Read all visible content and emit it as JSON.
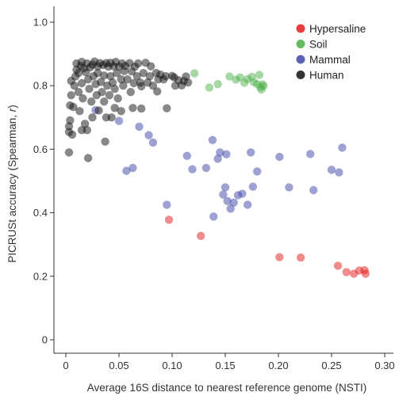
{
  "chart_data": {
    "type": "scatter",
    "title": "",
    "xlabel": "Average 16S distance to nearest reference genome (NSTI)",
    "ylabel_prefix": "PICRUSt accuracy (Spearman, ",
    "ylabel_var": "r",
    "ylabel_suffix": ")",
    "xlim": [
      0,
      0.3
    ],
    "ylim": [
      0,
      1.0
    ],
    "xticks": [
      0,
      0.05,
      0.1,
      0.15,
      0.2,
      0.25,
      0.3
    ],
    "xtick_labels": [
      "0",
      "0.05",
      "0.10",
      "0.15",
      "0.20",
      "0.25",
      "0.30"
    ],
    "yticks": [
      0,
      0.2,
      0.4,
      0.6,
      0.8,
      1.0
    ],
    "ytick_labels": [
      "0",
      "0.2",
      "0.4",
      "0.6",
      "0.8",
      "1.0"
    ],
    "grid": false,
    "legend_position": "top-right",
    "series": [
      {
        "name": "Hypersaline",
        "color": "#e41a1c",
        "points": [
          [
            0.097,
            0.378
          ],
          [
            0.127,
            0.327
          ],
          [
            0.201,
            0.26
          ],
          [
            0.221,
            0.259
          ],
          [
            0.256,
            0.233
          ],
          [
            0.264,
            0.213
          ],
          [
            0.271,
            0.208
          ],
          [
            0.276,
            0.218
          ],
          [
            0.281,
            0.219
          ],
          [
            0.282,
            0.208
          ]
        ]
      },
      {
        "name": "Soil",
        "color": "#4daf4a",
        "points": [
          [
            0.121,
            0.839
          ],
          [
            0.135,
            0.794
          ],
          [
            0.143,
            0.805
          ],
          [
            0.154,
            0.829
          ],
          [
            0.16,
            0.819
          ],
          [
            0.164,
            0.826
          ],
          [
            0.168,
            0.809
          ],
          [
            0.171,
            0.821
          ],
          [
            0.175,
            0.828
          ],
          [
            0.177,
            0.811
          ],
          [
            0.18,
            0.805
          ],
          [
            0.182,
            0.834
          ],
          [
            0.183,
            0.795
          ],
          [
            0.184,
            0.788
          ],
          [
            0.185,
            0.804
          ],
          [
            0.186,
            0.799
          ]
        ]
      },
      {
        "name": "Mammal",
        "color": "#3e46a6",
        "points": [
          [
            0.028,
            0.723
          ],
          [
            0.05,
            0.689
          ],
          [
            0.057,
            0.532
          ],
          [
            0.063,
            0.541
          ],
          [
            0.069,
            0.671
          ],
          [
            0.078,
            0.644
          ],
          [
            0.082,
            0.621
          ],
          [
            0.095,
            0.425
          ],
          [
            0.114,
            0.579
          ],
          [
            0.119,
            0.537
          ],
          [
            0.132,
            0.541
          ],
          [
            0.138,
            0.629
          ],
          [
            0.139,
            0.388
          ],
          [
            0.143,
            0.57
          ],
          [
            0.145,
            0.59
          ],
          [
            0.148,
            0.457
          ],
          [
            0.15,
            0.48
          ],
          [
            0.151,
            0.584
          ],
          [
            0.152,
            0.437
          ],
          [
            0.155,
            0.413
          ],
          [
            0.158,
            0.432
          ],
          [
            0.162,
            0.455
          ],
          [
            0.166,
            0.46
          ],
          [
            0.171,
            0.425
          ],
          [
            0.174,
            0.59
          ],
          [
            0.176,
            0.482
          ],
          [
            0.18,
            0.53
          ],
          [
            0.201,
            0.576
          ],
          [
            0.21,
            0.48
          ],
          [
            0.23,
            0.585
          ],
          [
            0.233,
            0.471
          ],
          [
            0.25,
            0.535
          ],
          [
            0.257,
            0.527
          ],
          [
            0.26,
            0.605
          ]
        ]
      },
      {
        "name": "Human",
        "color": "#111111",
        "points": [
          [
            0.003,
            0.59
          ],
          [
            0.003,
            0.672
          ],
          [
            0.003,
            0.654
          ],
          [
            0.004,
            0.691
          ],
          [
            0.004,
            0.738
          ],
          [
            0.005,
            0.77
          ],
          [
            0.005,
            0.815
          ],
          [
            0.006,
            0.646
          ],
          [
            0.007,
            0.733
          ],
          [
            0.008,
            0.8
          ],
          [
            0.009,
            0.829
          ],
          [
            0.01,
            0.85
          ],
          [
            0.01,
            0.87
          ],
          [
            0.012,
            0.78
          ],
          [
            0.012,
            0.84
          ],
          [
            0.013,
            0.72
          ],
          [
            0.014,
            0.862
          ],
          [
            0.015,
            0.875
          ],
          [
            0.015,
            0.808
          ],
          [
            0.016,
            0.76
          ],
          [
            0.017,
            0.855
          ],
          [
            0.018,
            0.68
          ],
          [
            0.019,
            0.842
          ],
          [
            0.02,
            0.66
          ],
          [
            0.02,
            0.87
          ],
          [
            0.021,
            0.82
          ],
          [
            0.021,
            0.572
          ],
          [
            0.022,
            0.79
          ],
          [
            0.023,
            0.858
          ],
          [
            0.024,
            0.75
          ],
          [
            0.025,
            0.866
          ],
          [
            0.025,
            0.7
          ],
          [
            0.026,
            0.83
          ],
          [
            0.027,
            0.876
          ],
          [
            0.028,
            0.805
          ],
          [
            0.029,
            0.77
          ],
          [
            0.03,
            0.861
          ],
          [
            0.03,
            0.84
          ],
          [
            0.031,
            0.722
          ],
          [
            0.032,
            0.871
          ],
          [
            0.033,
            0.812
          ],
          [
            0.034,
            0.78
          ],
          [
            0.035,
            0.865
          ],
          [
            0.036,
            0.832
          ],
          [
            0.036,
            0.75
          ],
          [
            0.037,
            0.624
          ],
          [
            0.038,
            0.871
          ],
          [
            0.039,
            0.8
          ],
          [
            0.04,
            0.86
          ],
          [
            0.041,
            0.77
          ],
          [
            0.042,
            0.83
          ],
          [
            0.042,
            0.872
          ],
          [
            0.043,
            0.7
          ],
          [
            0.044,
            0.81
          ],
          [
            0.045,
            0.861
          ],
          [
            0.046,
            0.79
          ],
          [
            0.047,
            0.875
          ],
          [
            0.048,
            0.84
          ],
          [
            0.049,
            0.76
          ],
          [
            0.05,
            0.86
          ],
          [
            0.052,
            0.82
          ],
          [
            0.053,
            0.87
          ],
          [
            0.054,
            0.8
          ],
          [
            0.055,
            0.846
          ],
          [
            0.056,
            0.862
          ],
          [
            0.058,
            0.82
          ],
          [
            0.06,
            0.871
          ],
          [
            0.061,
            0.78
          ],
          [
            0.062,
            0.845
          ],
          [
            0.064,
            0.808
          ],
          [
            0.065,
            0.86
          ],
          [
            0.067,
            0.83
          ],
          [
            0.068,
            0.87
          ],
          [
            0.07,
            0.81
          ],
          [
            0.071,
            0.798
          ],
          [
            0.073,
            0.84
          ],
          [
            0.075,
            0.872
          ],
          [
            0.077,
            0.81
          ],
          [
            0.079,
            0.83
          ],
          [
            0.08,
            0.861
          ],
          [
            0.082,
            0.8
          ],
          [
            0.085,
            0.84
          ],
          [
            0.086,
            0.782
          ],
          [
            0.087,
            0.82
          ],
          [
            0.089,
            0.835
          ],
          [
            0.092,
            0.82
          ],
          [
            0.094,
            0.83
          ],
          [
            0.095,
            0.729
          ],
          [
            0.1,
            0.831
          ],
          [
            0.102,
            0.826
          ],
          [
            0.103,
            0.8
          ],
          [
            0.106,
            0.817
          ],
          [
            0.109,
            0.801
          ],
          [
            0.111,
            0.815
          ],
          [
            0.113,
            0.829
          ],
          [
            0.115,
            0.81
          ],
          [
            0.063,
            0.73
          ],
          [
            0.071,
            0.728
          ],
          [
            0.052,
            0.72
          ],
          [
            0.046,
            0.73
          ],
          [
            0.038,
            0.7
          ],
          [
            0.015,
            0.66
          ]
        ]
      }
    ]
  }
}
